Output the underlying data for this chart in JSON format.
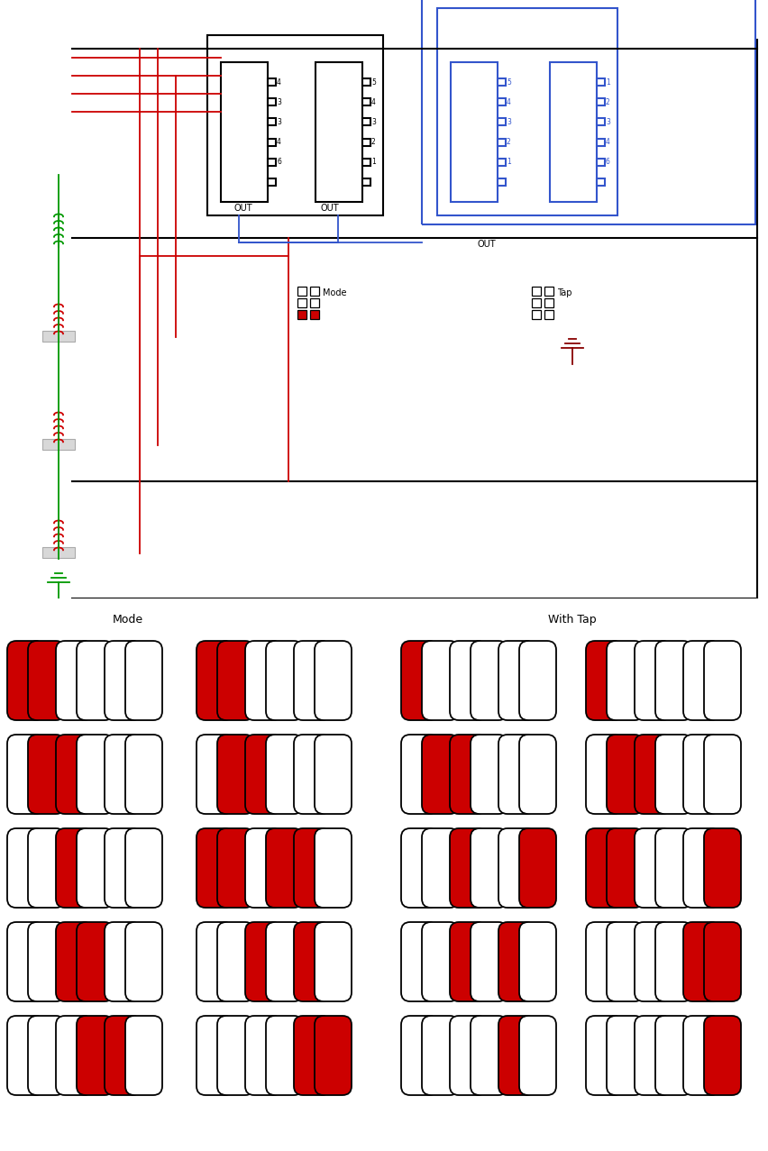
{
  "bg_color": "#ffffff",
  "mode_label": "Mode",
  "tap_label": "With Tap",
  "mode_patterns": [
    [
      [
        1,
        1,
        0,
        0,
        0,
        0
      ],
      [
        1,
        1,
        0,
        0,
        0,
        0
      ]
    ],
    [
      [
        0,
        1,
        1,
        0,
        0,
        0
      ],
      [
        0,
        1,
        1,
        0,
        0,
        0
      ]
    ],
    [
      [
        0,
        0,
        1,
        0,
        0,
        0
      ],
      [
        1,
        1,
        0,
        1,
        1,
        0
      ]
    ],
    [
      [
        0,
        0,
        1,
        1,
        0,
        0
      ],
      [
        0,
        0,
        1,
        0,
        1,
        0
      ]
    ],
    [
      [
        0,
        0,
        0,
        1,
        1,
        0
      ],
      [
        0,
        0,
        0,
        0,
        1,
        1
      ]
    ]
  ],
  "tap_patterns": [
    [
      [
        1,
        0,
        0,
        0,
        0,
        0
      ],
      [
        1,
        0,
        0,
        0,
        0,
        0
      ]
    ],
    [
      [
        0,
        1,
        1,
        0,
        0,
        0
      ],
      [
        0,
        1,
        1,
        0,
        0,
        0
      ]
    ],
    [
      [
        0,
        0,
        1,
        0,
        0,
        1
      ],
      [
        1,
        1,
        0,
        0,
        0,
        1
      ]
    ],
    [
      [
        0,
        0,
        1,
        0,
        1,
        0
      ],
      [
        0,
        0,
        0,
        0,
        1,
        1
      ]
    ],
    [
      [
        0,
        0,
        0,
        0,
        1,
        0
      ],
      [
        0,
        0,
        0,
        0,
        0,
        1
      ]
    ]
  ]
}
